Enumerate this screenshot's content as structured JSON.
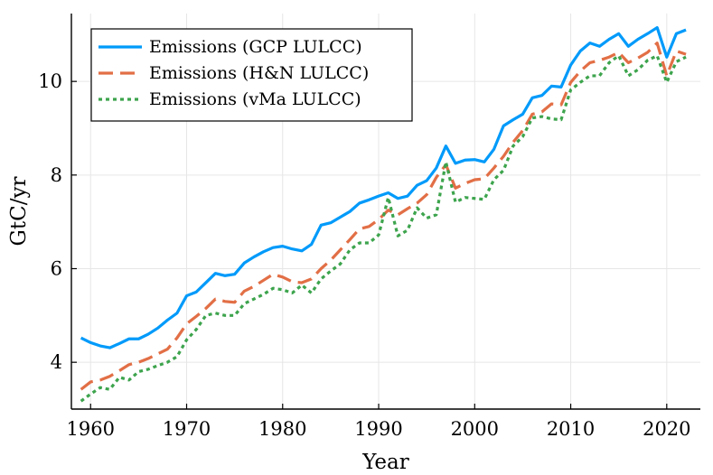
{
  "chart_data": {
    "type": "line",
    "title": "",
    "xlabel": "Year",
    "ylabel": "GtC/yr",
    "xlim": [
      1958,
      2023.5
    ],
    "ylim": [
      3.0,
      11.45
    ],
    "xticks": [
      1960,
      1970,
      1980,
      1990,
      2000,
      2010,
      2020
    ],
    "yticks": [
      4,
      6,
      8,
      10
    ],
    "xtick_labels": [
      "1960",
      "1970",
      "1980",
      "1990",
      "2000",
      "2010",
      "2020"
    ],
    "ytick_labels": [
      "4",
      "6",
      "8",
      "10"
    ],
    "grid": true,
    "legend_position": "top-left",
    "x": [
      1959,
      1960,
      1961,
      1962,
      1963,
      1964,
      1965,
      1966,
      1967,
      1968,
      1969,
      1970,
      1971,
      1972,
      1973,
      1974,
      1975,
      1976,
      1977,
      1978,
      1979,
      1980,
      1981,
      1982,
      1983,
      1984,
      1985,
      1986,
      1987,
      1988,
      1989,
      1990,
      1991,
      1992,
      1993,
      1994,
      1995,
      1996,
      1997,
      1998,
      1999,
      2000,
      2001,
      2002,
      2003,
      2004,
      2005,
      2006,
      2007,
      2008,
      2009,
      2010,
      2011,
      2012,
      2013,
      2014,
      2015,
      2016,
      2017,
      2018,
      2019,
      2020,
      2021,
      2022
    ],
    "series": [
      {
        "name": "Emissions (GCP LULCC)",
        "color": "#009AFA",
        "style": "solid",
        "values": [
          4.52,
          4.42,
          4.35,
          4.31,
          4.4,
          4.5,
          4.5,
          4.6,
          4.73,
          4.9,
          5.05,
          5.42,
          5.5,
          5.7,
          5.9,
          5.85,
          5.88,
          6.12,
          6.25,
          6.36,
          6.45,
          6.48,
          6.42,
          6.38,
          6.52,
          6.93,
          6.98,
          7.1,
          7.22,
          7.4,
          7.47,
          7.55,
          7.62,
          7.5,
          7.55,
          7.78,
          7.88,
          8.15,
          8.62,
          8.25,
          8.32,
          8.33,
          8.28,
          8.55,
          9.05,
          9.18,
          9.3,
          9.65,
          9.7,
          9.9,
          9.88,
          10.35,
          10.65,
          10.82,
          10.75,
          10.9,
          11.02,
          10.75,
          10.9,
          11.02,
          11.15,
          10.52,
          11.02,
          11.1
        ]
      },
      {
        "name": "Emissions (H&N LULCC)",
        "color": "#E26F46",
        "style": "dashed",
        "values": [
          3.42,
          3.58,
          3.62,
          3.7,
          3.82,
          3.95,
          4.0,
          4.08,
          4.18,
          4.28,
          4.52,
          4.82,
          4.98,
          5.15,
          5.35,
          5.3,
          5.28,
          5.52,
          5.62,
          5.75,
          5.88,
          5.82,
          5.72,
          5.7,
          5.78,
          6.0,
          6.18,
          6.4,
          6.62,
          6.85,
          6.9,
          7.05,
          7.25,
          7.15,
          7.28,
          7.4,
          7.58,
          7.95,
          8.22,
          7.72,
          7.82,
          7.9,
          7.92,
          8.15,
          8.4,
          8.7,
          8.95,
          9.3,
          9.35,
          9.52,
          9.5,
          9.98,
          10.22,
          10.4,
          10.45,
          10.52,
          10.62,
          10.4,
          10.5,
          10.62,
          10.82,
          10.12,
          10.65,
          10.58
        ]
      },
      {
        "name": "Emissions (vMa LULCC)",
        "color": "#3DA44D",
        "style": "dotted",
        "values": [
          3.17,
          3.32,
          3.46,
          3.42,
          3.68,
          3.62,
          3.8,
          3.85,
          3.93,
          4.0,
          4.12,
          4.48,
          4.7,
          5.0,
          5.05,
          5.0,
          5.0,
          5.25,
          5.35,
          5.45,
          5.58,
          5.55,
          5.48,
          5.65,
          5.48,
          5.78,
          5.95,
          6.1,
          6.4,
          6.55,
          6.55,
          6.72,
          7.52,
          6.7,
          6.82,
          7.3,
          7.08,
          7.15,
          8.28,
          7.42,
          7.52,
          7.5,
          7.48,
          7.9,
          8.1,
          8.62,
          8.82,
          9.22,
          9.25,
          9.2,
          9.18,
          9.82,
          9.98,
          10.12,
          10.12,
          10.4,
          10.55,
          10.12,
          10.25,
          10.45,
          10.55,
          9.98,
          10.42,
          10.52
        ]
      }
    ]
  }
}
